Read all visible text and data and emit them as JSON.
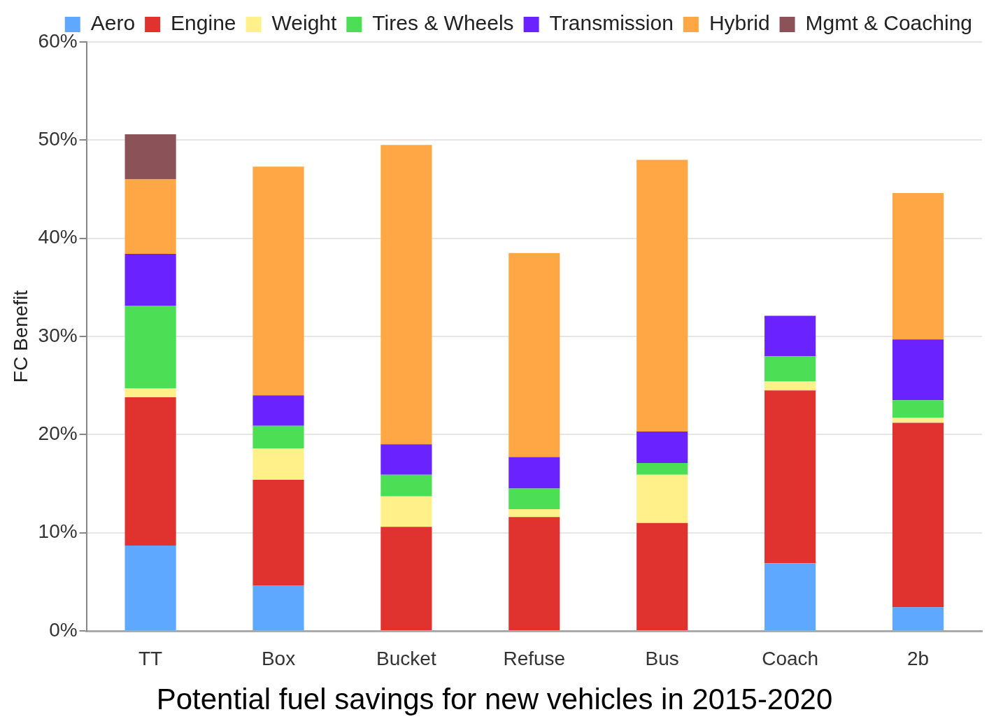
{
  "chart_data": {
    "type": "bar",
    "title": "Potential fuel savings for new vehicles in 2015-2020",
    "ylabel": "FC Benefit",
    "categories": [
      "TT",
      "Box",
      "Bucket",
      "Refuse",
      "Bus",
      "Coach",
      "2b"
    ],
    "stacked": true,
    "series": [
      {
        "name": "Aero",
        "color": "#5fa8ff",
        "values": [
          8.7,
          4.6,
          0,
          0,
          0,
          6.9,
          2.4
        ]
      },
      {
        "name": "Engine",
        "color": "#e03330",
        "values": [
          15.1,
          10.8,
          10.6,
          11.6,
          11.0,
          17.6,
          18.8
        ]
      },
      {
        "name": "Weight",
        "color": "#fff08a",
        "values": [
          0.9,
          3.2,
          3.1,
          0.8,
          4.9,
          0.9,
          0.5
        ]
      },
      {
        "name": "Tires & Wheels",
        "color": "#4cdf55",
        "values": [
          8.4,
          2.3,
          2.2,
          2.1,
          1.2,
          2.6,
          1.8
        ]
      },
      {
        "name": "Transmission",
        "color": "#6a22ff",
        "values": [
          5.3,
          3.1,
          3.1,
          3.2,
          3.2,
          4.1,
          6.2
        ]
      },
      {
        "name": "Hybrid",
        "color": "#ffa645",
        "values": [
          7.6,
          23.3,
          30.5,
          20.8,
          27.7,
          0,
          14.9
        ]
      },
      {
        "name": "Mgmt & Coaching",
        "color": "#8b5357",
        "values": [
          4.6,
          0,
          0,
          0,
          0,
          0,
          0
        ]
      }
    ],
    "ylim": [
      0,
      60
    ],
    "yticks": [
      {
        "value": 0,
        "label": "0%"
      },
      {
        "value": 10,
        "label": "10%"
      },
      {
        "value": 20,
        "label": "20%"
      },
      {
        "value": 30,
        "label": "30%"
      },
      {
        "value": 40,
        "label": "40%"
      },
      {
        "value": 50,
        "label": "50%"
      },
      {
        "value": 60,
        "label": "60%"
      }
    ],
    "grid": "y",
    "legend": "top right"
  }
}
